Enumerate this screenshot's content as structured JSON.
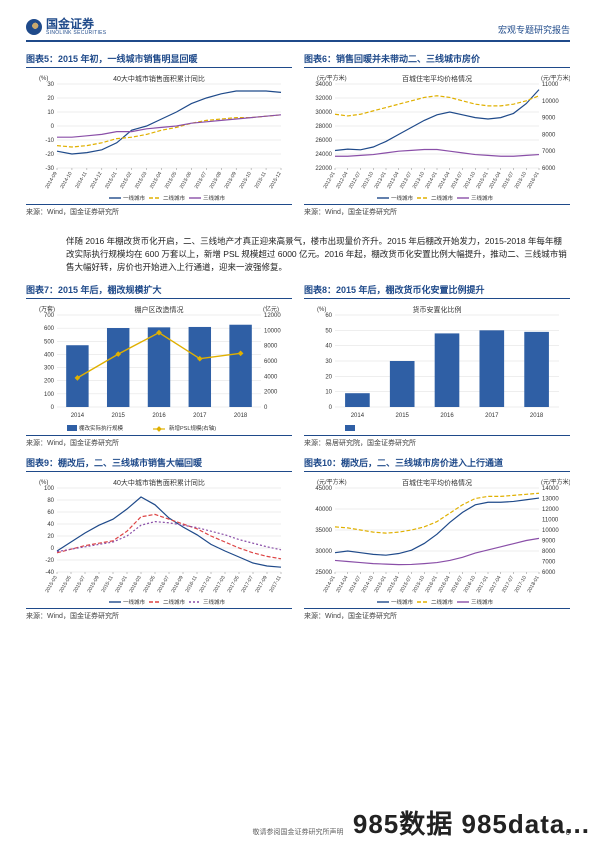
{
  "header": {
    "company": "国金证券",
    "company_en": "SINOLINK SECURITIES",
    "doctype": "宏观专题研究报告"
  },
  "body_text": "伴随 2016 年棚改货币化开启，二、三线地产才真正迎来高景气，楼市出现量价齐升。2015 年后棚改开始发力，2015-2018 年每年棚改实际执行规模均在 600 万套以上，新增 PSL 规模超过 6000 亿元。2016 年起，棚改货币化安置比例大幅提升，推动二、三线城市销售大幅好转，房价也开始进入上行通道，迎来一波强修复。",
  "charts": {
    "c5": {
      "title": "图表5：2015 年初，一线城市销售明显回暖",
      "plot_title": "40大中城市销售面积累计同比",
      "y_unit": "(%)",
      "xlabels": [
        "2014-09",
        "2014-10",
        "2014-11",
        "2014-12",
        "2015-01",
        "2015-02",
        "2015-03",
        "2015-04",
        "2015-05",
        "2015-06",
        "2015-07",
        "2015-08",
        "2015-09",
        "2015-10",
        "2015-11",
        "2015-12"
      ],
      "ylim": [
        -30,
        30
      ],
      "ytick_step": 10,
      "series": [
        {
          "name": "一线城市",
          "color": "#1f4a8a",
          "values": [
            -18,
            -20,
            -19,
            -17,
            -12,
            -3,
            0,
            5,
            10,
            16,
            20,
            23,
            25,
            25,
            25,
            24
          ]
        },
        {
          "name": "二线城市",
          "color": "#e0b000",
          "dash": "4 2",
          "values": [
            -14,
            -15,
            -14,
            -12,
            -9,
            -8,
            -6,
            -3,
            -1,
            2,
            4,
            5,
            6,
            6,
            7,
            8
          ]
        },
        {
          "name": "三线城市",
          "color": "#8a4fa8",
          "values": [
            -8,
            -8,
            -7,
            -6,
            -4,
            -4,
            -2,
            -1,
            0,
            2,
            3,
            4,
            5,
            6,
            7,
            8
          ]
        }
      ],
      "source": "来源：Wind，国金证券研究所"
    },
    "c6": {
      "title": "图表6：销售回暖并未带动二、三线城市房价",
      "plot_title": "百城住宅平均价格情况",
      "y_unit_l": "(元/平方米)",
      "y_unit_r": "(元/平方米)",
      "xlabels": [
        "2012-01",
        "2012-04",
        "2012-07",
        "2012-10",
        "2013-01",
        "2013-04",
        "2013-07",
        "2013-10",
        "2014-01",
        "2014-04",
        "2014-07",
        "2014-10",
        "2015-01",
        "2015-04",
        "2015-07",
        "2015-10",
        "2016-01"
      ],
      "ylim_l": [
        22000,
        34000
      ],
      "ytick_l": 2000,
      "ylim_r": [
        6000,
        11000
      ],
      "ytick_r": 1000,
      "series": [
        {
          "name": "一线城市",
          "color": "#1f4a8a",
          "axis": "l",
          "values": [
            24500,
            24700,
            24600,
            25000,
            25800,
            26800,
            27800,
            28800,
            29600,
            30000,
            29600,
            29200,
            29000,
            29200,
            29800,
            31200,
            33200
          ]
        },
        {
          "name": "二线城市",
          "color": "#e0b000",
          "dash": "4 2",
          "axis": "r",
          "values": [
            9200,
            9100,
            9200,
            9400,
            9600,
            9800,
            10000,
            10200,
            10300,
            10200,
            10000,
            9800,
            9700,
            9700,
            9800,
            10000,
            10300
          ]
        },
        {
          "name": "三线城市",
          "color": "#8a4fa8",
          "axis": "r",
          "values": [
            6700,
            6700,
            6750,
            6800,
            6900,
            7000,
            7050,
            7100,
            7100,
            7000,
            6900,
            6800,
            6750,
            6700,
            6700,
            6750,
            6800
          ]
        }
      ],
      "source": "来源：Wind，国金证券研究所"
    },
    "c7": {
      "title": "图表7：2015 年后，棚改规模扩大",
      "plot_title": "棚户区改造情况",
      "y_unit_l": "(万套)",
      "y_unit_r": "(亿元)",
      "xlabels": [
        "2014",
        "2015",
        "2016",
        "2017",
        "2018"
      ],
      "ylim_l": [
        0,
        700
      ],
      "ytick_l": 100,
      "ylim_r": [
        0,
        12000
      ],
      "ytick_r": 2000,
      "bars": {
        "name": "棚改实际执行规模",
        "color": "#2f5fa5",
        "values": [
          470,
          601,
          606,
          609,
          626
        ]
      },
      "line": {
        "name": "新增PSL规模(右轴)",
        "color": "#e0b000",
        "values": [
          3800,
          6900,
          9700,
          6300,
          7000
        ]
      },
      "source": "来源：Wind，国金证券研究所"
    },
    "c8": {
      "title": "图表8：2015 年后，棚改货币化安置比例提升",
      "plot_title": "货币安置化比例",
      "y_unit": "(%)",
      "xlabels": [
        "2014",
        "2015",
        "2016",
        "2017",
        "2018"
      ],
      "ylim": [
        0,
        60
      ],
      "ytick": 10,
      "bars": {
        "color": "#2f5fa5",
        "values": [
          9,
          30,
          48,
          50,
          49
        ]
      },
      "source": "来源：易居研究院，国金证券研究所"
    },
    "c9": {
      "title": "图表9：棚改后，二、三线城市销售大幅回暖",
      "plot_title": "40大中城市销售面积累计同比",
      "y_unit": "(%)",
      "xlabels": [
        "2015-03",
        "2015-05",
        "2015-07",
        "2015-09",
        "2015-11",
        "2016-01",
        "2016-03",
        "2016-05",
        "2016-07",
        "2016-09",
        "2016-11",
        "2017-01",
        "2017-03",
        "2017-05",
        "2017-07",
        "2017-09",
        "2017-11"
      ],
      "ylim": [
        -40,
        100
      ],
      "ytick": 20,
      "series": [
        {
          "name": "一线城市",
          "color": "#1f4a8a",
          "values": [
            -5,
            10,
            25,
            38,
            48,
            65,
            85,
            72,
            50,
            35,
            22,
            6,
            -5,
            -15,
            -25,
            -30,
            -32
          ]
        },
        {
          "name": "二线城市",
          "color": "#d44",
          "dash": "4 2",
          "values": [
            -8,
            -2,
            4,
            8,
            12,
            28,
            52,
            56,
            48,
            40,
            32,
            20,
            10,
            0,
            -8,
            -14,
            -18
          ]
        },
        {
          "name": "三线城市",
          "color": "#8a4fa8",
          "dash": "2 2",
          "values": [
            -6,
            -2,
            2,
            6,
            10,
            20,
            38,
            44,
            42,
            38,
            34,
            28,
            22,
            14,
            8,
            2,
            -3
          ]
        }
      ],
      "source": "来源：Wind，国金证券研究所"
    },
    "c10": {
      "title": "图表10：棚改后，二、三线城市房价进入上行通道",
      "plot_title": "百城住宅平均价格情况",
      "y_unit_l": "(元/平方米)",
      "y_unit_r": "(元/平方米)",
      "xlabels": [
        "2014-01",
        "2014-04",
        "2014-07",
        "2014-10",
        "2015-01",
        "2015-04",
        "2015-07",
        "2015-10",
        "2016-01",
        "2016-04",
        "2016-07",
        "2016-10",
        "2017-01",
        "2017-04",
        "2017-07",
        "2017-10",
        "2018-01"
      ],
      "ylim_l": [
        25000,
        45000
      ],
      "ytick_l": 5000,
      "ylim_r": [
        6000,
        14000
      ],
      "ytick_r": 1000,
      "series": [
        {
          "name": "一线城市",
          "color": "#1f4a8a",
          "axis": "l",
          "values": [
            29600,
            30000,
            29600,
            29200,
            29000,
            29400,
            30200,
            31800,
            34000,
            36800,
            39200,
            41000,
            41600,
            41600,
            41800,
            42200,
            42600
          ]
        },
        {
          "name": "二线城市",
          "color": "#e0b000",
          "dash": "4 2",
          "axis": "r",
          "values": [
            10300,
            10200,
            10000,
            9800,
            9700,
            9800,
            10000,
            10300,
            10800,
            11600,
            12400,
            13000,
            13200,
            13200,
            13300,
            13400,
            13500
          ]
        },
        {
          "name": "三线城市",
          "color": "#8a4fa8",
          "axis": "r",
          "values": [
            7100,
            7000,
            6900,
            6800,
            6750,
            6700,
            6720,
            6800,
            6900,
            7100,
            7400,
            7800,
            8100,
            8400,
            8700,
            9000,
            9200
          ]
        }
      ],
      "source": "来源：Wind，国金证券研究所"
    }
  },
  "footer": "敬请参阅国金证券研究所声明",
  "page_num": "6",
  "watermark": "985数据 985data..."
}
